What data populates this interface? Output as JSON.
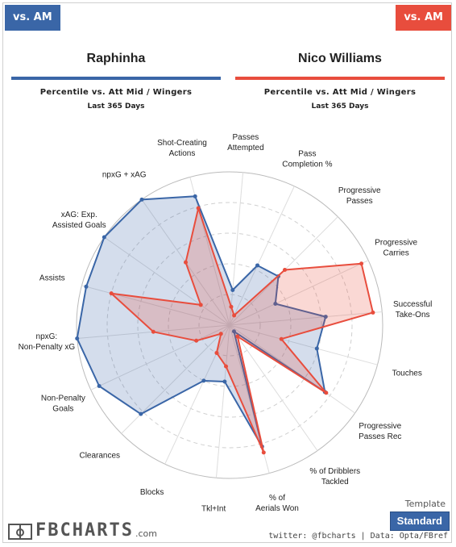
{
  "header": {
    "left_badge": "vs. AM",
    "right_badge": "vs. AM"
  },
  "players": [
    {
      "name": "Raphinha",
      "subtitle": "Percentile vs. Att Mid / Wingers",
      "period": "Last 365 Days",
      "color": "#3a66a7"
    },
    {
      "name": "Nico Williams",
      "subtitle": "Percentile vs. Att Mid / Wingers",
      "period": "Last 365 Days",
      "color": "#e84d3d"
    }
  ],
  "footer": {
    "template_label": "Template",
    "template_value": "Standard",
    "logo_text": "FBCHARTS",
    "logo_suffix": ".com",
    "credit": "twitter: @fbcharts | Data: Opta/FBref"
  },
  "chart_data": {
    "type": "radar",
    "range": [
      0,
      100
    ],
    "grid": true,
    "axes": [
      "Passes Attempted",
      "Pass Completion %",
      "Progressive Passes",
      "Progressive Carries",
      "Successful Take-Ons",
      "Touches",
      "Progressive Passes Rec",
      "% of Dribblers Tackled",
      "% of Aerials Won",
      "Tkl+Int",
      "Blocks",
      "Clearances",
      "Non-Penalty Goals",
      "npxG: Non-Penalty xG",
      "Assists",
      "xAG: Exp. Assisted Goals",
      "npxG + xAG",
      "Shot-Creating Actions"
    ],
    "series": [
      {
        "name": "Raphinha",
        "color": "#3a66a7",
        "fill": "rgba(58,102,167,0.22)",
        "values": [
          23,
          43,
          45,
          33,
          63,
          59,
          76,
          5,
          82,
          37,
          40,
          82,
          94,
          100,
          97,
          100,
          100,
          87
        ]
      },
      {
        "name": "Nico Williams",
        "color": "#e84d3d",
        "fill": "rgba(232,77,61,0.22)",
        "values": [
          12,
          7,
          51,
          95,
          94,
          35,
          77,
          9,
          86,
          27,
          20,
          8,
          24,
          50,
          80,
          23,
          50,
          79
        ]
      }
    ]
  }
}
